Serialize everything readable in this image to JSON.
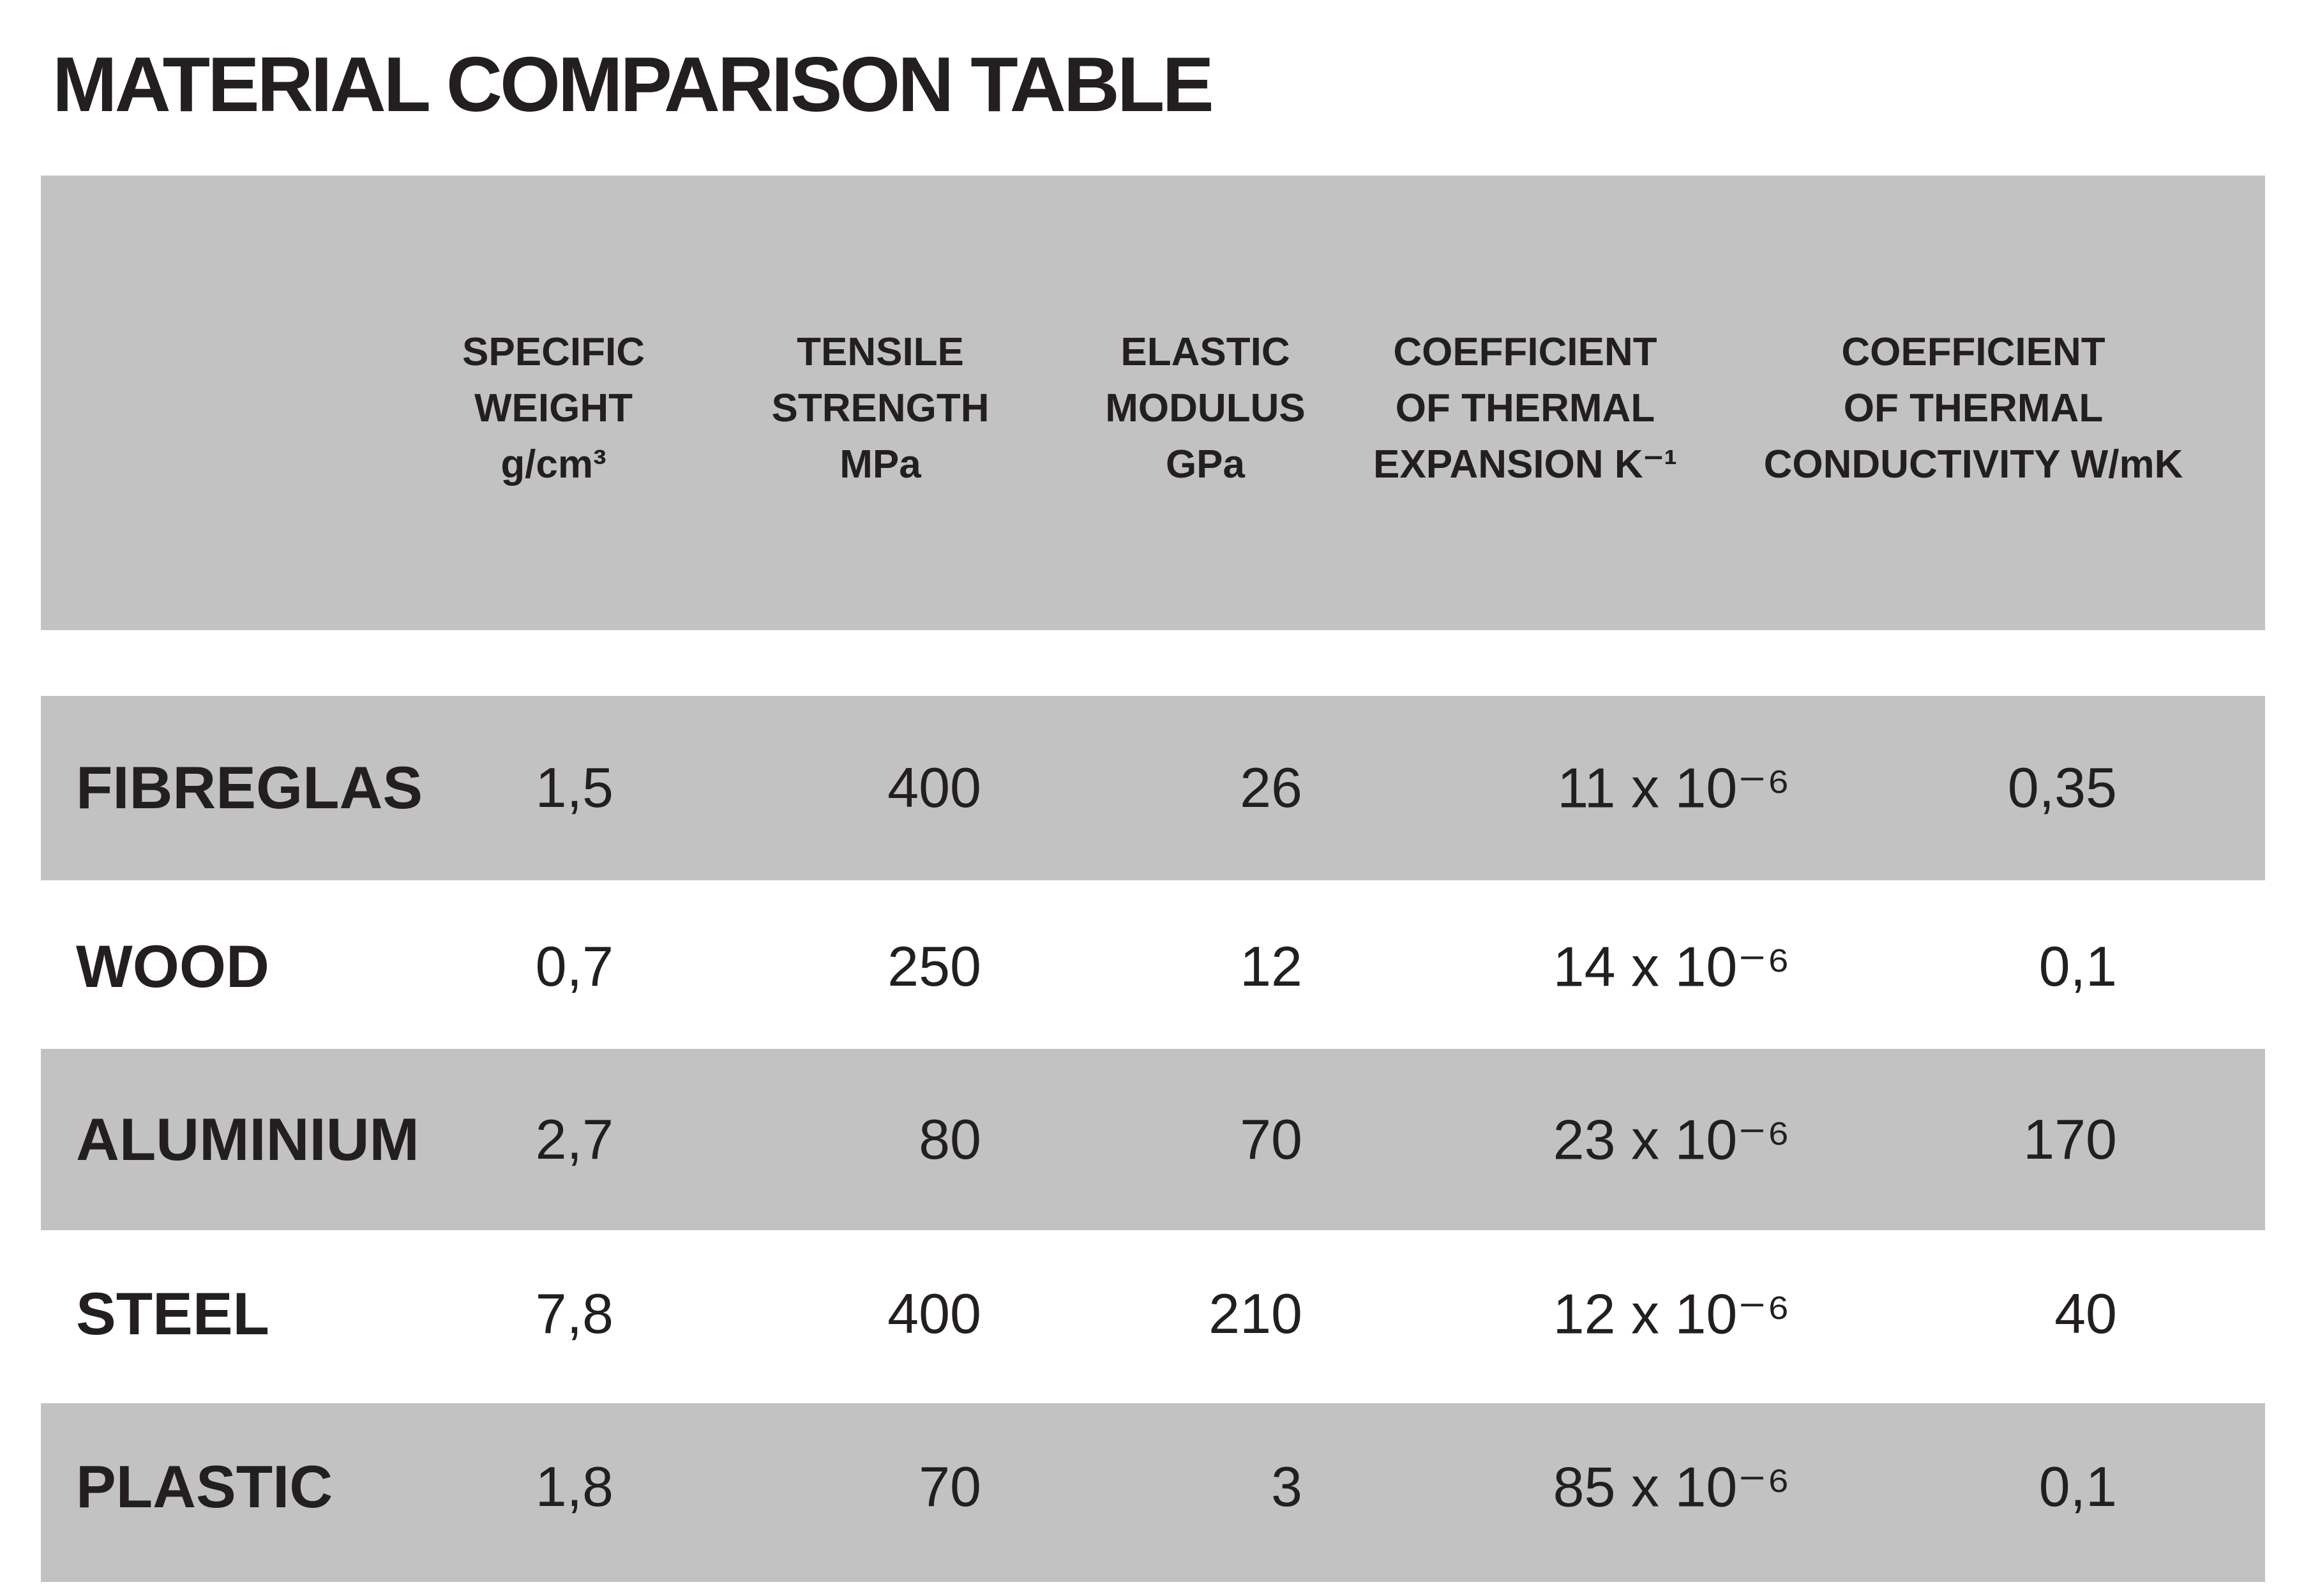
{
  "title": "MATERIAL COMPARISON TABLE",
  "table": {
    "columns": [
      [
        "SPECIFIC",
        "WEIGHT",
        "g/cm³"
      ],
      [
        "TENSILE",
        "STRENGTH",
        "MPa"
      ],
      [
        "ELASTIC",
        "MODULUS",
        "GPa"
      ],
      [
        "COEFFICIENT",
        "OF THERMAL",
        "EXPANSION K⁻¹"
      ],
      [
        "COEFFICIENT",
        "OF THERMAL",
        "CONDUCTIVITY W/mK"
      ]
    ],
    "rows": [
      {
        "label": "FIBREGLAS",
        "values": [
          "1,5",
          "400",
          "26",
          "11 x 10⁻⁶",
          "0,35"
        ]
      },
      {
        "label": "WOOD",
        "values": [
          "0,7",
          "250",
          "12",
          "14 x 10⁻⁶",
          "0,1"
        ]
      },
      {
        "label": "ALUMINIUM",
        "values": [
          "2,7",
          "80",
          "70",
          "23 x 10⁻⁶",
          "170"
        ]
      },
      {
        "label": "STEEL",
        "values": [
          "7,8",
          "400",
          "210",
          "12 x 10⁻⁶",
          "40"
        ]
      },
      {
        "label": "PLASTIC",
        "values": [
          "1,8",
          "70",
          "3",
          "85 x 10⁻⁶",
          "0,1"
        ]
      }
    ]
  }
}
